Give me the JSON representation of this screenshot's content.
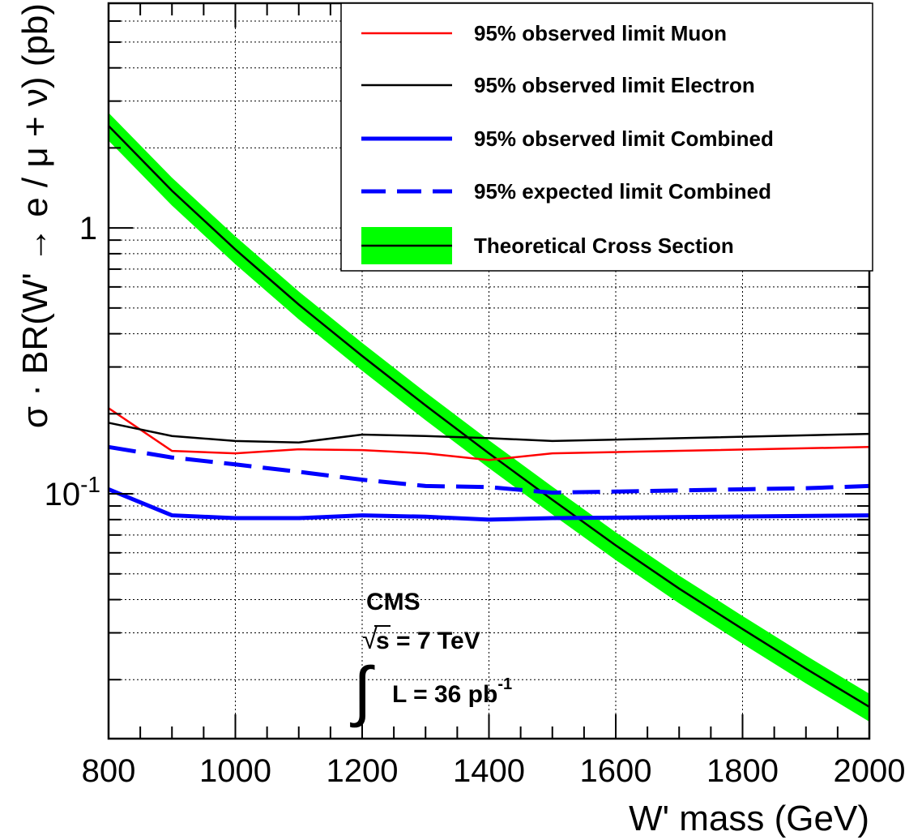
{
  "chart_data": {
    "type": "line",
    "xlabel": "W' mass (GeV)",
    "ylabel": "σ · BR(W' → e / μ + ν) (pb)",
    "xlim": [
      800,
      2000
    ],
    "ylim": [
      0.012,
      7
    ],
    "y_scale": "log",
    "x_ticks": [
      "800",
      "1000",
      "1200",
      "1400",
      "1600",
      "1800",
      "2000"
    ],
    "y_ticks": [
      {
        "base": "1",
        "exp": ""
      },
      {
        "base": "10",
        "exp": "-1"
      }
    ],
    "grid": true,
    "legend_placement": "top-right",
    "series": [
      {
        "name": "95% observed limit Muon",
        "color": "#ff0000",
        "style": "solid",
        "x": [
          800,
          900,
          1000,
          1100,
          1200,
          1300,
          1400,
          1500,
          2000
        ],
        "y": [
          0.21,
          0.145,
          0.142,
          0.147,
          0.146,
          0.142,
          0.134,
          0.142,
          0.15
        ]
      },
      {
        "name": "95% observed limit Electron",
        "color": "#000000",
        "style": "solid",
        "x": [
          800,
          900,
          1000,
          1100,
          1200,
          1300,
          1400,
          1500,
          2000
        ],
        "y": [
          0.185,
          0.165,
          0.158,
          0.156,
          0.167,
          0.165,
          0.162,
          0.158,
          0.168
        ]
      },
      {
        "name": "95% observed limit Combined",
        "color": "#0000ff",
        "style": "thick",
        "x": [
          800,
          900,
          1000,
          1100,
          1200,
          1300,
          1400,
          1500,
          2000
        ],
        "y": [
          0.104,
          0.083,
          0.081,
          0.081,
          0.083,
          0.082,
          0.08,
          0.081,
          0.083
        ]
      },
      {
        "name": "95% expected limit Combined",
        "color": "#0000ff",
        "style": "dashed",
        "x": [
          800,
          900,
          1000,
          1100,
          1200,
          1300,
          1400,
          1500,
          1600,
          1700,
          1800,
          1900,
          2000
        ],
        "y": [
          0.15,
          0.137,
          0.129,
          0.121,
          0.113,
          0.107,
          0.106,
          0.101,
          0.102,
          0.103,
          0.104,
          0.105,
          0.107
        ]
      },
      {
        "name": "Theoretical Cross Section",
        "color": "#000000",
        "band_color": "#00ff00",
        "style": "band",
        "x": [
          800,
          900,
          1000,
          1100,
          1200,
          1300,
          1400,
          1500,
          1600,
          1700,
          1800,
          1900,
          2000
        ],
        "y": [
          2.42,
          1.38,
          0.83,
          0.515,
          0.33,
          0.215,
          0.142,
          0.095,
          0.064,
          0.044,
          0.031,
          0.022,
          0.0158
        ],
        "band_rel": 0.12
      }
    ],
    "annotations": {
      "experiment": "CMS",
      "energy_sqrt": "√",
      "energy_text": "s = 7 TeV",
      "lumi_integral": "∫",
      "lumi_text": "L = 36 pb",
      "lumi_exp": "-1"
    }
  }
}
